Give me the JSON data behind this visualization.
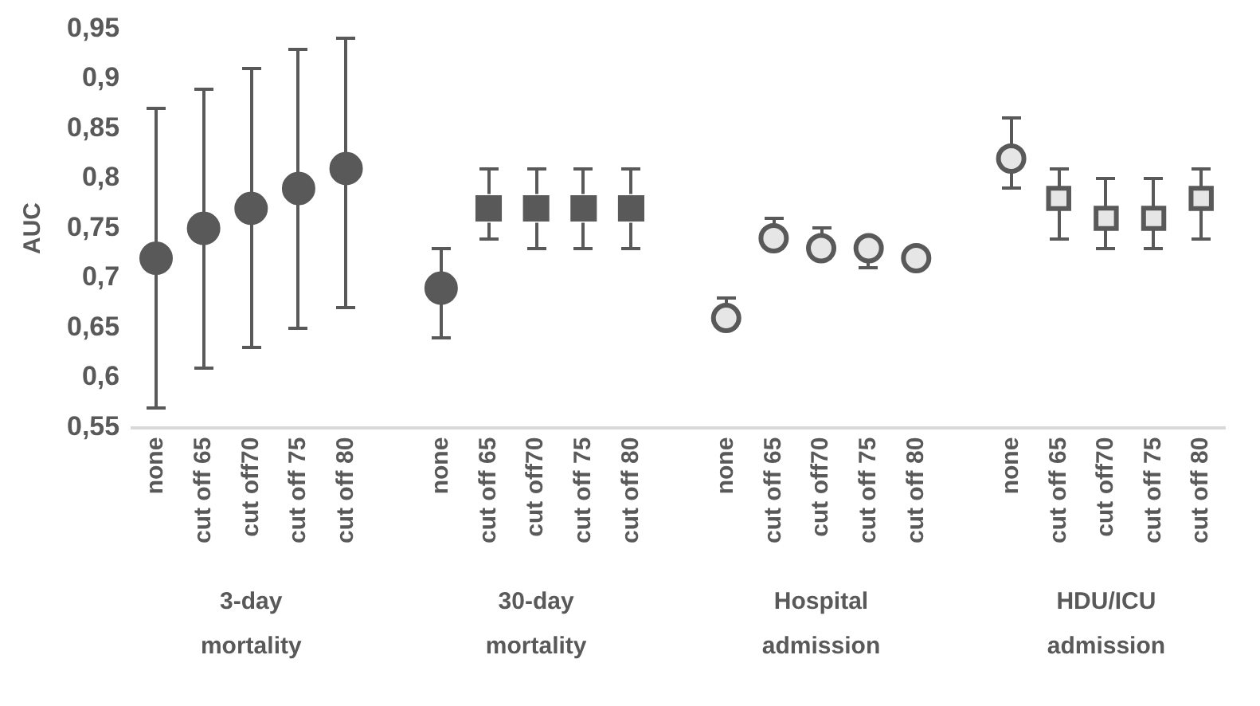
{
  "chart_data": {
    "type": "scatter",
    "ylabel": "AUC",
    "categories": [
      "none",
      "cut off 65",
      "cut off70",
      "cut off 75",
      "cut off 80",
      null,
      "none",
      "cut off 65",
      "cut off70",
      "cut off 75",
      "cut off 80",
      null,
      "none",
      "cut off 65",
      "cut off70",
      "cut off 75",
      "cut off 80",
      null,
      "none",
      "cut off 65",
      "cut off70",
      "cut off 75",
      "cut off 80"
    ],
    "series": [
      {
        "color": "#595959",
        "marker": "circle",
        "values": [
          0.72,
          0.75,
          0.77,
          0.79,
          0.81,
          null,
          null,
          null,
          null,
          null,
          null,
          null,
          null,
          null,
          null,
          null,
          null,
          null,
          null,
          null,
          null,
          null,
          null
        ],
        "errors": [
          [
            0.57,
            0.87
          ],
          [
            0.61,
            0.89
          ],
          [
            0.63,
            0.91
          ],
          [
            0.65,
            0.93
          ],
          [
            0.67,
            0.94
          ],
          null,
          null,
          null,
          null,
          null,
          null,
          null,
          null,
          null,
          null,
          null,
          null,
          null,
          null,
          null,
          null,
          null,
          null
        ]
      },
      {
        "color": "#595959",
        "marker": "circle",
        "values": [
          null,
          null,
          null,
          null,
          null,
          null,
          0.69,
          null,
          null,
          null,
          null,
          null,
          null,
          null,
          null,
          null,
          null,
          null,
          null,
          null,
          null,
          null,
          null
        ],
        "errors": [
          null,
          null,
          null,
          null,
          null,
          null,
          [
            0.64,
            0.73
          ],
          null,
          null,
          null,
          null,
          null,
          null,
          null,
          null,
          null,
          null,
          null,
          null,
          null,
          null,
          null,
          null
        ]
      },
      {
        "color": "#595959",
        "marker": "square",
        "values": [
          null,
          null,
          null,
          null,
          null,
          null,
          null,
          0.77,
          0.77,
          0.77,
          0.77,
          null,
          null,
          null,
          null,
          null,
          null,
          null,
          null,
          null,
          null,
          null,
          null
        ],
        "errors": [
          null,
          null,
          null,
          null,
          null,
          null,
          null,
          [
            0.74,
            0.81
          ],
          [
            0.73,
            0.81
          ],
          [
            0.73,
            0.81
          ],
          [
            0.73,
            0.81
          ],
          null,
          null,
          null,
          null,
          null,
          null,
          null,
          null,
          null,
          null,
          null,
          null
        ]
      },
      {
        "color": "#e6e6e6",
        "marker": "circle",
        "values": [
          null,
          null,
          null,
          null,
          null,
          null,
          null,
          null,
          null,
          null,
          null,
          null,
          0.66,
          0.74,
          0.73,
          0.73,
          0.72,
          null,
          0.82,
          null,
          null,
          null,
          null
        ],
        "errors": [
          null,
          null,
          null,
          null,
          null,
          null,
          null,
          null,
          null,
          null,
          null,
          null,
          [
            0.65,
            0.68
          ],
          [
            0.73,
            0.76
          ],
          [
            0.72,
            0.75
          ],
          [
            0.71,
            0.73
          ],
          null,
          null,
          [
            0.79,
            0.86
          ],
          null,
          null,
          null,
          null
        ]
      },
      {
        "color": "#e6e6e6",
        "marker": "square",
        "values": [
          null,
          null,
          null,
          null,
          null,
          null,
          null,
          null,
          null,
          null,
          null,
          null,
          null,
          null,
          null,
          null,
          null,
          null,
          null,
          0.78,
          0.76,
          0.76,
          0.78
        ],
        "errors": [
          null,
          null,
          null,
          null,
          null,
          null,
          null,
          null,
          null,
          null,
          null,
          null,
          null,
          null,
          null,
          null,
          null,
          null,
          null,
          [
            0.74,
            0.81
          ],
          [
            0.73,
            0.8
          ],
          [
            0.73,
            0.8
          ],
          [
            0.74,
            0.81
          ]
        ]
      }
    ],
    "ylim": [
      0.55,
      0.95
    ],
    "yticks": [
      {
        "value": 0.55,
        "label": "0,55"
      },
      {
        "value": 0.6,
        "label": "0,6"
      },
      {
        "value": 0.65,
        "label": "0,65"
      },
      {
        "value": 0.7,
        "label": "0,7"
      },
      {
        "value": 0.75,
        "label": "0,75"
      },
      {
        "value": 0.8,
        "label": "0,8"
      },
      {
        "value": 0.85,
        "label": "0,85"
      },
      {
        "value": 0.9,
        "label": "0,9"
      },
      {
        "value": 0.95,
        "label": "0,95"
      }
    ],
    "grid": false,
    "legend": false,
    "annotations": [
      "3-day mortality",
      "30-day mortality",
      "Hospital admission",
      "HDU/ICU admission"
    ]
  }
}
